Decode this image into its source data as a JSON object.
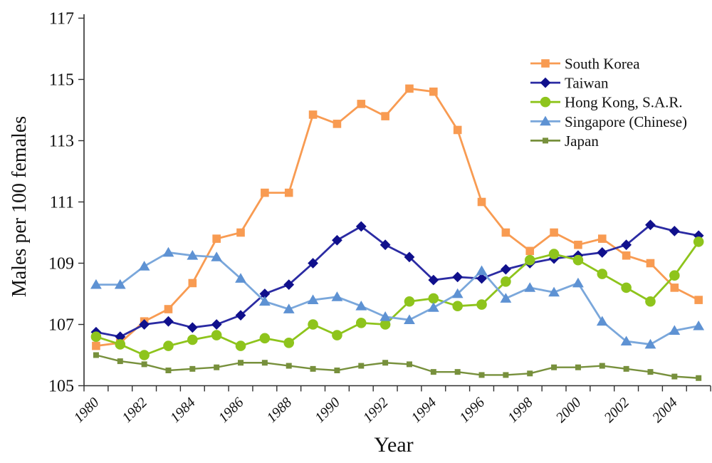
{
  "chart_data": {
    "type": "line",
    "title": "",
    "xlabel": "Year",
    "ylabel": "Males per 100 females",
    "x": [
      1980,
      1981,
      1982,
      1983,
      1984,
      1985,
      1986,
      1987,
      1988,
      1989,
      1990,
      1991,
      1992,
      1993,
      1994,
      1995,
      1996,
      1997,
      1998,
      1999,
      2000,
      2001,
      2002,
      2003,
      2004,
      2005
    ],
    "x_tick_labels": [
      "1980",
      "1982",
      "1984",
      "1986",
      "1988",
      "1990",
      "1992",
      "1994",
      "1996",
      "1998",
      "2000",
      "2002",
      "2004"
    ],
    "yticks": [
      105,
      107,
      109,
      111,
      113,
      115,
      117
    ],
    "ylim": [
      105,
      117
    ],
    "grid": false,
    "legend_position": "inside-top-right",
    "series": [
      {
        "name": "South Korea",
        "marker": "square",
        "color": "#F89B52",
        "marker_color": "#F89B52",
        "values": [
          106.3,
          106.4,
          107.1,
          107.5,
          108.35,
          109.8,
          110.0,
          111.3,
          111.3,
          113.85,
          113.55,
          114.2,
          113.8,
          114.7,
          114.6,
          113.35,
          111.0,
          110.0,
          109.4,
          110.0,
          109.6,
          109.8,
          109.25,
          109.0,
          108.2,
          107.8
        ]
      },
      {
        "name": "Taiwan",
        "marker": "diamond",
        "color": "#2B2BA3",
        "marker_color": "#10108C",
        "values": [
          106.75,
          106.6,
          107.0,
          107.1,
          106.9,
          107.0,
          107.3,
          108.0,
          108.3,
          109.0,
          109.75,
          110.2,
          109.6,
          109.2,
          108.45,
          108.55,
          108.5,
          108.8,
          109.0,
          109.15,
          109.25,
          109.35,
          109.6,
          110.25,
          110.05,
          109.9
        ]
      },
      {
        "name": "Hong Kong, S.A.R.",
        "marker": "circle",
        "color": "#8EC41C",
        "marker_color": "#8EC41C",
        "values": [
          106.6,
          106.35,
          106.0,
          106.3,
          106.5,
          106.65,
          106.3,
          106.55,
          106.4,
          107.0,
          106.65,
          107.05,
          107.0,
          107.75,
          107.85,
          107.6,
          107.65,
          108.4,
          109.1,
          109.3,
          109.1,
          108.65,
          108.2,
          107.75,
          108.6,
          109.7
        ]
      },
      {
        "name": "Singapore (Chinese)",
        "marker": "triangle",
        "color": "#7AA7DB",
        "marker_color": "#5E92D3",
        "values": [
          108.3,
          108.3,
          108.9,
          109.35,
          109.25,
          109.2,
          108.5,
          107.75,
          107.5,
          107.8,
          107.9,
          107.6,
          107.25,
          107.15,
          107.55,
          108.0,
          108.75,
          107.85,
          108.2,
          108.05,
          108.35,
          107.1,
          106.45,
          106.35,
          106.8,
          106.95
        ]
      },
      {
        "name": "Japan",
        "marker": "square-small",
        "color": "#77903C",
        "marker_color": "#77903C",
        "values": [
          106.0,
          105.8,
          105.7,
          105.5,
          105.55,
          105.6,
          105.75,
          105.75,
          105.65,
          105.55,
          105.5,
          105.65,
          105.75,
          105.7,
          105.45,
          105.45,
          105.35,
          105.35,
          105.4,
          105.6,
          105.6,
          105.65,
          105.55,
          105.45,
          105.3,
          105.25
        ]
      }
    ]
  }
}
